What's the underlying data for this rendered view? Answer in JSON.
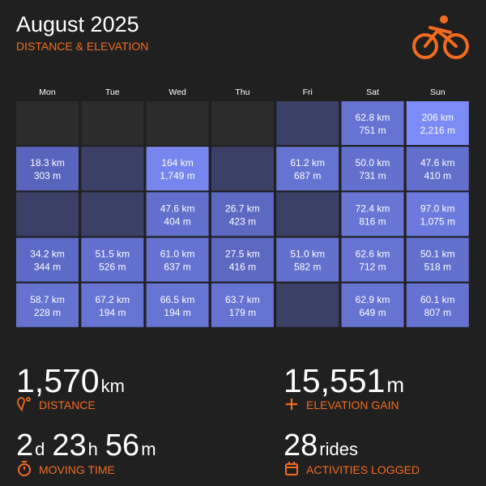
{
  "header": {
    "title": "August 2025",
    "subtitle": "DISTANCE & ELEVATION"
  },
  "calendar": {
    "weekdays": [
      "Mon",
      "Tue",
      "Wed",
      "Thu",
      "Fri",
      "Sat",
      "Sun"
    ],
    "weeks": [
      [
        null,
        {
          "distance": "62.8 km",
          "elevation": "751 m"
        },
        {
          "distance": "206 km",
          "elevation": "2,216 m"
        }
      ],
      [
        {
          "distance": "18.3 km",
          "elevation": "303 m"
        },
        null,
        {
          "distance": "164 km",
          "elevation": "1,749 m"
        },
        null,
        {
          "distance": "61.2 km",
          "elevation": "687 m"
        },
        {
          "distance": "50.0 km",
          "elevation": "731 m"
        },
        {
          "distance": "47.6 km",
          "elevation": "410 m"
        }
      ],
      [
        null,
        null,
        {
          "distance": "47.6 km",
          "elevation": "404 m"
        },
        {
          "distance": "26.7 km",
          "elevation": "423 m"
        },
        null,
        {
          "distance": "72.4 km",
          "elevation": "816 m"
        },
        {
          "distance": "97.0 km",
          "elevation": "1,075 m"
        }
      ],
      [
        {
          "distance": "34.2 km",
          "elevation": "344 m"
        },
        {
          "distance": "51.5 km",
          "elevation": "526 m"
        },
        {
          "distance": "61.0 km",
          "elevation": "637 m"
        },
        {
          "distance": "27.5 km",
          "elevation": "416 m"
        },
        {
          "distance": "51.0 km",
          "elevation": "582 m"
        },
        {
          "distance": "62.6 km",
          "elevation": "712 m"
        },
        {
          "distance": "50.1 km",
          "elevation": "518 m"
        }
      ],
      [
        {
          "distance": "58.7 km",
          "elevation": "228 m"
        },
        {
          "distance": "67.2 km",
          "elevation": "194 m"
        },
        {
          "distance": "66.5 km",
          "elevation": "194 m"
        },
        {
          "distance": "63.7 km",
          "elevation": "179 m"
        },
        null,
        {
          "distance": "62.9 km",
          "elevation": "649 m"
        },
        {
          "distance": "60.1 km",
          "elevation": "807 m"
        }
      ]
    ]
  },
  "stats": [
    {
      "parts": [
        [
          "1,570",
          "km"
        ]
      ],
      "label": "DISTANCE"
    },
    {
      "parts": [
        [
          "15,551",
          "m"
        ]
      ],
      "label": "ELEVATION GAIN"
    },
    {
      "parts": [
        [
          "2",
          "d"
        ],
        [
          "23",
          "h"
        ],
        [
          "56",
          "m"
        ]
      ],
      "label": "MOVING TIME"
    },
    {
      "parts": [
        [
          "28",
          "rides"
        ]
      ],
      "label": "ACTIVITIES LOGGED"
    }
  ]
}
